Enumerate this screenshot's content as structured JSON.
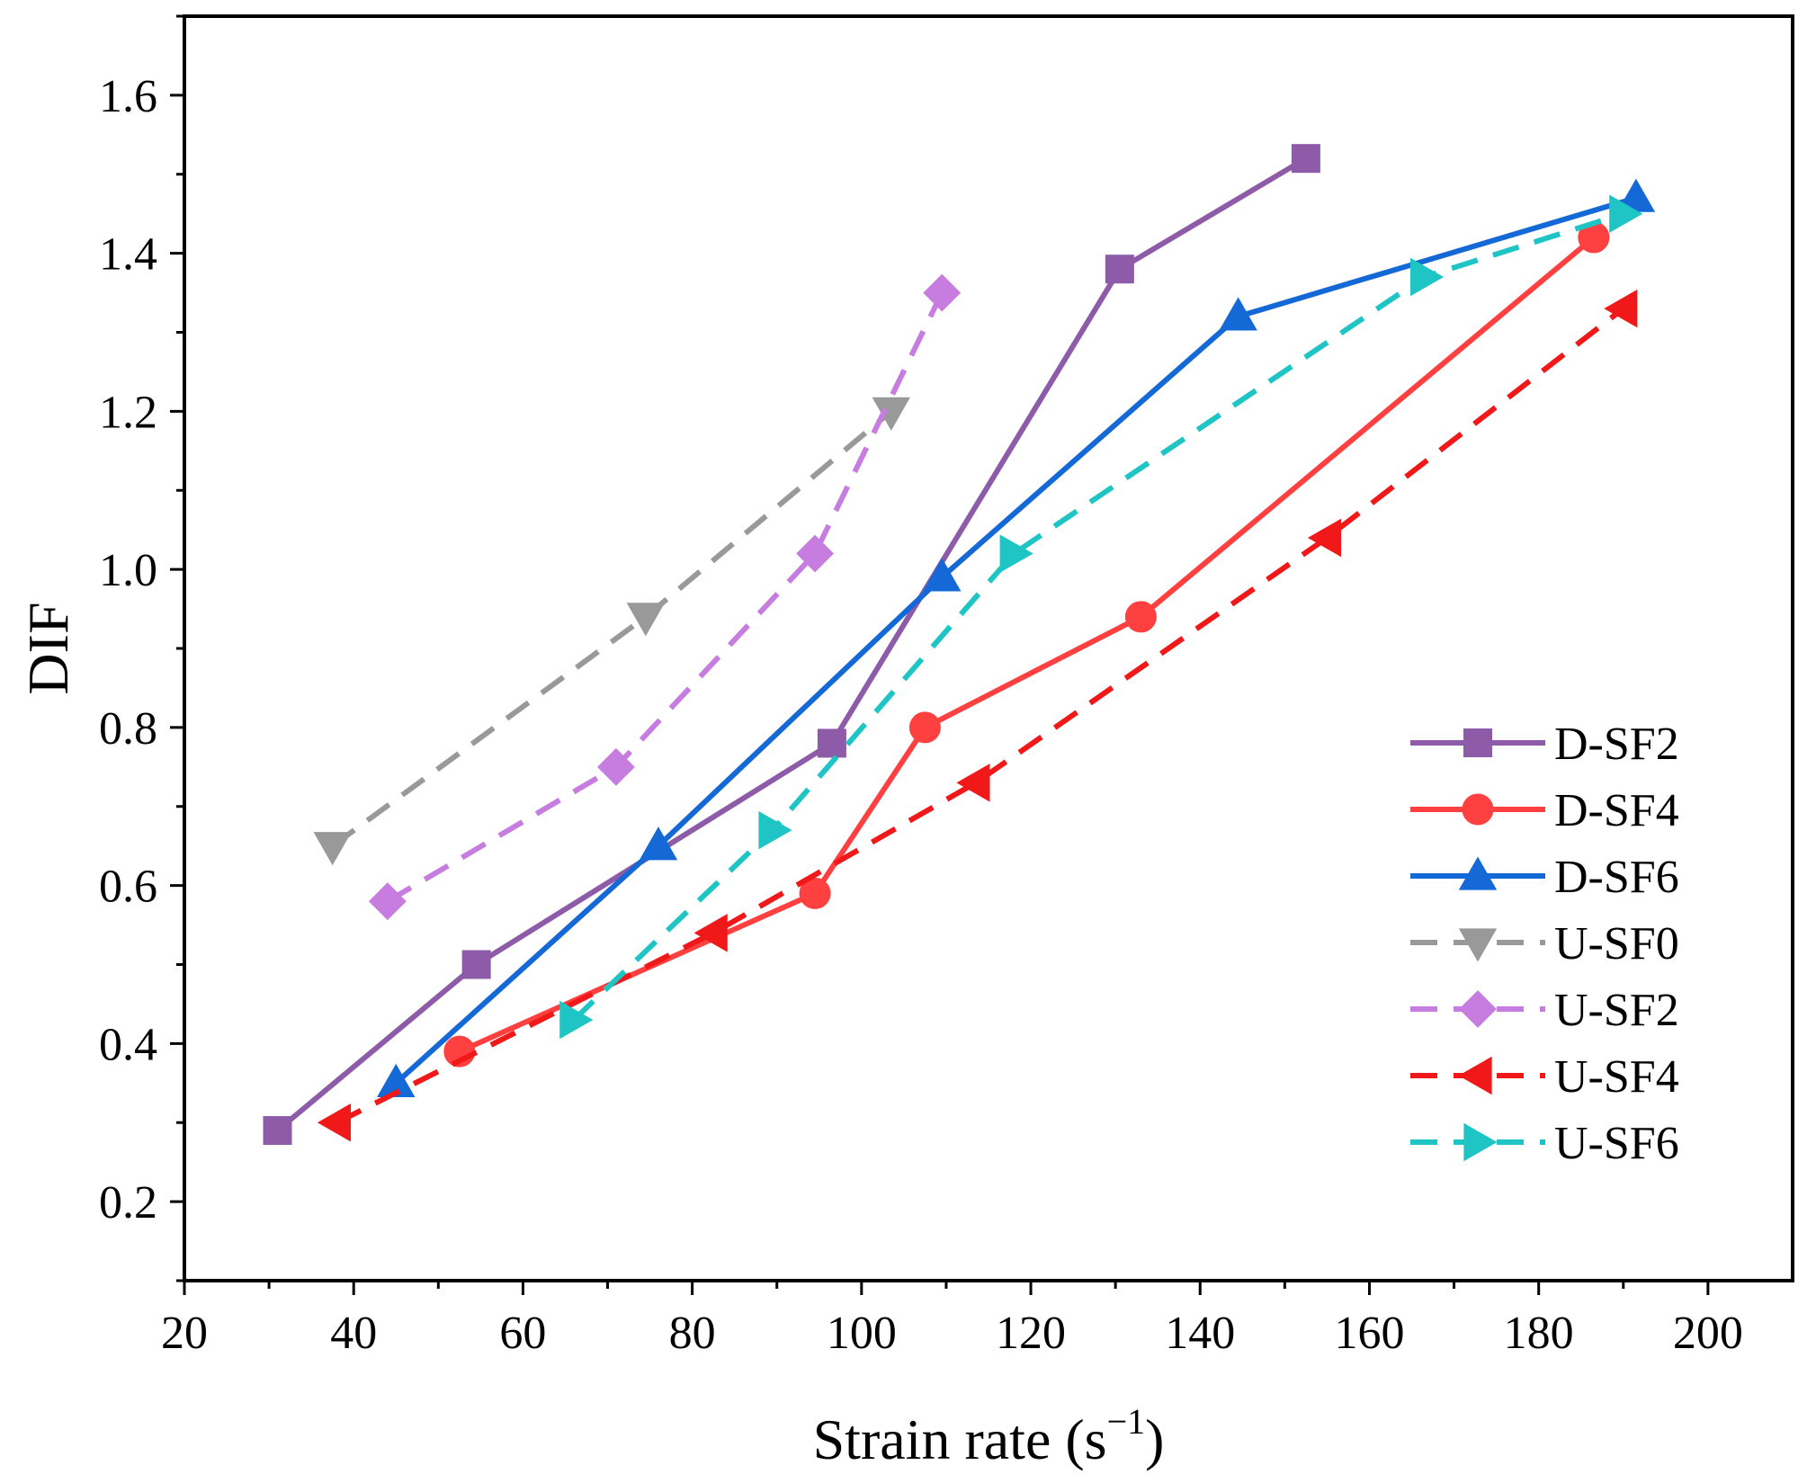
{
  "chart_data": {
    "type": "line",
    "title": "",
    "xlabel": "Strain rate (s",
    "xlabel_sup": "−1",
    "xlabel_close": ")",
    "ylabel": "DIF",
    "xlim": [
      20,
      210
    ],
    "ylim": [
      0.1,
      1.7
    ],
    "xticks": [
      20,
      40,
      60,
      80,
      100,
      120,
      140,
      160,
      180,
      200
    ],
    "yticks": [
      0.2,
      0.4,
      0.6,
      0.8,
      1.0,
      1.2,
      1.4,
      1.6
    ],
    "xtick_labels": [
      "20",
      "40",
      "60",
      "80",
      "100",
      "120",
      "140",
      "160",
      "180",
      "200"
    ],
    "ytick_labels": [
      "0.2",
      "0.4",
      "0.6",
      "0.8",
      "1.0",
      "1.2",
      "1.4",
      "1.6"
    ],
    "grid": false,
    "legend_position": "lower-right",
    "series": [
      {
        "name": "D-SF2",
        "color": "#8E5BA8",
        "dash": "solid",
        "marker": "square",
        "x": [
          31,
          54.5,
          96.5,
          130.5,
          152.5
        ],
        "y": [
          0.29,
          0.5,
          0.78,
          1.38,
          1.52
        ]
      },
      {
        "name": "D-SF4",
        "color": "#FF4040",
        "dash": "solid",
        "marker": "circle",
        "x": [
          52.5,
          94.5,
          107.5,
          133,
          186.5
        ],
        "y": [
          0.39,
          0.59,
          0.8,
          0.94,
          1.42
        ]
      },
      {
        "name": "D-SF6",
        "color": "#1469D6",
        "dash": "solid",
        "marker": "triangle-up",
        "x": [
          45,
          76,
          109.5,
          144.5,
          191.5
        ],
        "y": [
          0.35,
          0.65,
          0.99,
          1.32,
          1.47
        ]
      },
      {
        "name": "U-SF0",
        "color": "#999999",
        "dash": "dashed",
        "marker": "triangle-down",
        "x": [
          37.5,
          74.5,
          103.5
        ],
        "y": [
          0.65,
          0.94,
          1.2
        ]
      },
      {
        "name": "U-SF2",
        "color": "#C77CE0",
        "dash": "dashed",
        "marker": "diamond",
        "x": [
          44,
          71,
          94.5,
          109.5
        ],
        "y": [
          0.58,
          0.75,
          1.02,
          1.35
        ]
      },
      {
        "name": "U-SF4",
        "color": "#F01818",
        "dash": "dashed",
        "marker": "triangle-left",
        "x": [
          38,
          82.5,
          113.5,
          155,
          190
        ],
        "y": [
          0.3,
          0.54,
          0.73,
          1.04,
          1.33
        ]
      },
      {
        "name": "U-SF6",
        "color": "#1FC5C5",
        "dash": "dashed",
        "marker": "triangle-right",
        "x": [
          66,
          89.5,
          118,
          166.5,
          190
        ],
        "y": [
          0.43,
          0.67,
          1.02,
          1.37,
          1.45
        ]
      }
    ]
  }
}
